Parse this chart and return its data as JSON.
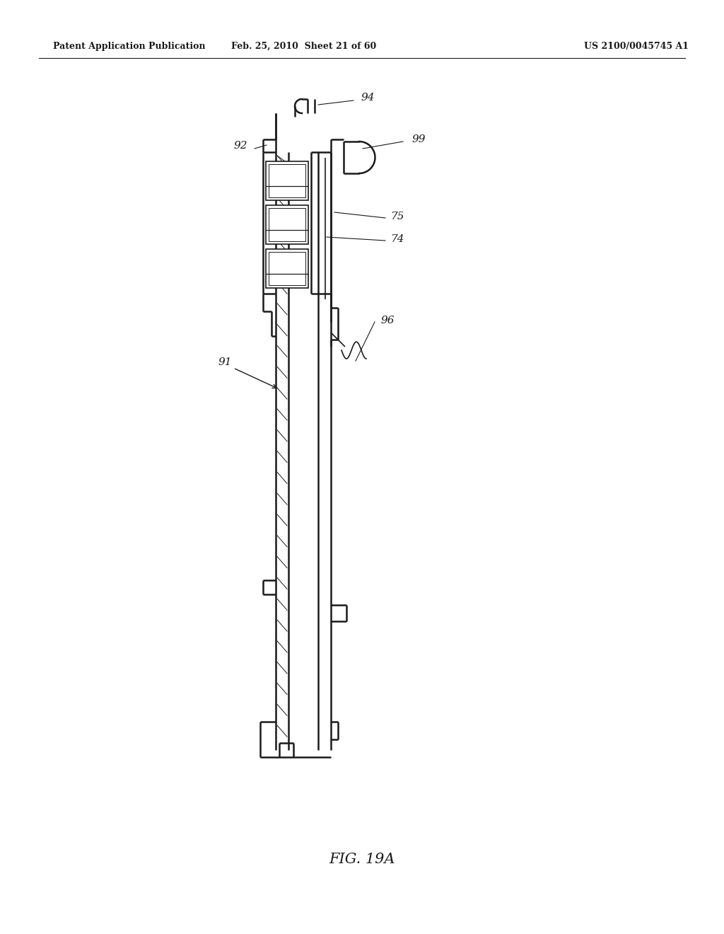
{
  "bg_color": "#ffffff",
  "line_color": "#1a1a1a",
  "header_left": "Patent Application Publication",
  "header_mid": "Feb. 25, 2010  Sheet 21 of 60",
  "header_right": "US 2100/0045745 A1",
  "figure_label": "FIG. 19A",
  "figsize": [
    10.24,
    13.2
  ],
  "dpi": 100
}
